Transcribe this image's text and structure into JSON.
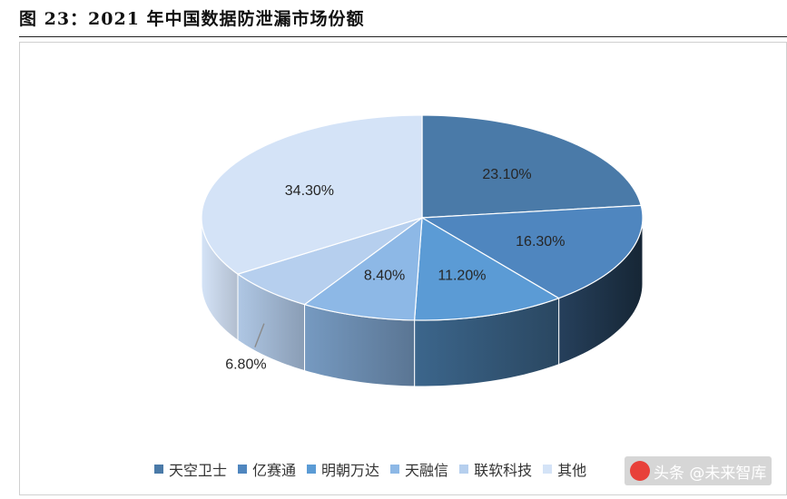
{
  "figure": {
    "title": "图 23：2021 年中国数据防泄漏市场份额"
  },
  "chart_data": {
    "type": "pie",
    "title": "",
    "series": [
      {
        "label": "天空卫士",
        "value": 23.1,
        "label_text": "23.10%",
        "color": "#4a7aa8"
      },
      {
        "label": "亿赛通",
        "value": 16.3,
        "label_text": "16.30%",
        "color": "#4f86bf"
      },
      {
        "label": "明朝万达",
        "value": 11.2,
        "label_text": "11.20%",
        "color": "#5b9bd5"
      },
      {
        "label": "天融信",
        "value": 8.4,
        "label_text": "8.40%",
        "color": "#8db8e6"
      },
      {
        "label": "联软科技",
        "value": 6.8,
        "label_text": "6.80%",
        "color": "#b6cfee"
      },
      {
        "label": "其他",
        "value": 34.3,
        "label_text": "34.30%",
        "color": "#d4e3f7"
      }
    ],
    "legend_position": "bottom",
    "style": "3d"
  },
  "watermark": {
    "text": "头条 @未来智库"
  }
}
